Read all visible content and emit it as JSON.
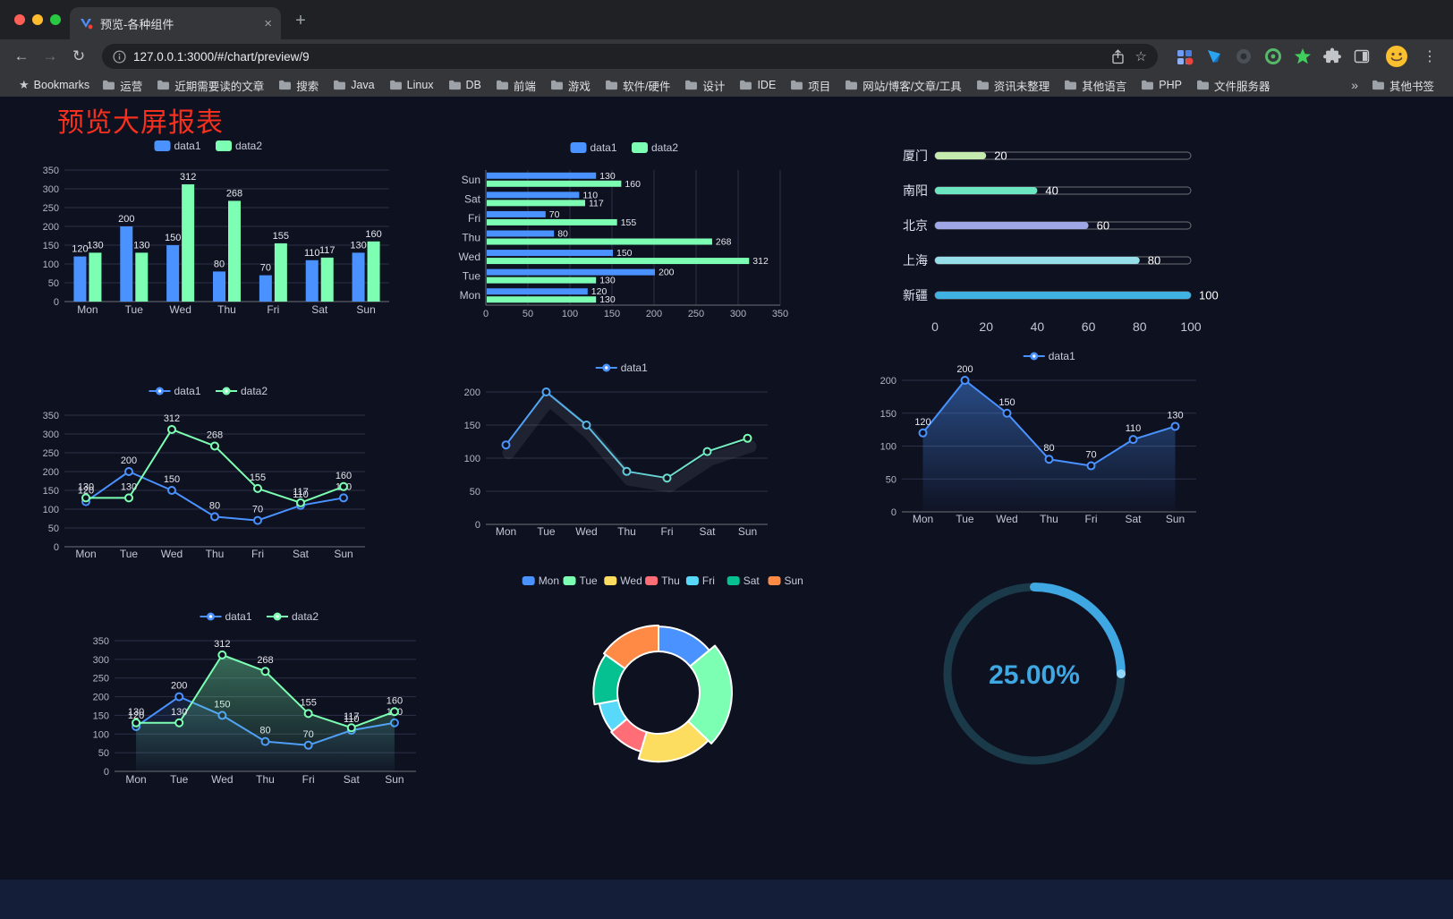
{
  "browser": {
    "tab": {
      "title": "预览-各种组件"
    },
    "toolbar": {
      "url": "127.0.0.1:3000/#/chart/preview/9"
    },
    "bookmarks_bar": {
      "first_label": "Bookmarks",
      "folders": [
        "运营",
        "近期需要读的文章",
        "搜索",
        "Java",
        "Linux",
        "DB",
        "前端",
        "游戏",
        "软件/硬件",
        "设计",
        "IDE",
        "项目",
        "网站/博客/文章/工具",
        "资讯未整理",
        "其他语言",
        "PHP",
        "文件服务器"
      ],
      "overflow_label": "»",
      "other_label": "其他书签"
    }
  },
  "page": {
    "title": "预览大屏报表",
    "title_color": "#f5301f",
    "background": "#0e1120"
  },
  "chart_data": [
    {
      "id": "c1",
      "type": "bar",
      "renderer": "bar",
      "categories": [
        "Mon",
        "Tue",
        "Wed",
        "Thu",
        "Fri",
        "Sat",
        "Sun"
      ],
      "series": [
        {
          "name": "data1",
          "color": "#4992ff",
          "values": [
            120,
            200,
            150,
            80,
            70,
            110,
            130
          ]
        },
        {
          "name": "data2",
          "color": "#7cffb2",
          "values": [
            130,
            130,
            312,
            268,
            155,
            117,
            160
          ]
        }
      ],
      "ylim": [
        0,
        350
      ],
      "ytick": 50,
      "labels": true,
      "legend_position": "top",
      "grid": true
    },
    {
      "id": "c2",
      "type": "bar",
      "orientation": "horizontal",
      "renderer": "hbar",
      "categories": [
        "Mon",
        "Tue",
        "Wed",
        "Thu",
        "Fri",
        "Sat",
        "Sun"
      ],
      "series": [
        {
          "name": "data1",
          "color": "#4992ff",
          "values": [
            120,
            200,
            150,
            80,
            70,
            110,
            130
          ]
        },
        {
          "name": "data2",
          "color": "#7cffb2",
          "values": [
            130,
            130,
            312,
            268,
            155,
            117,
            160
          ]
        }
      ],
      "xlim": [
        0,
        350
      ],
      "xtick": 50,
      "labels": true,
      "legend_position": "top",
      "grid": true
    },
    {
      "id": "c3",
      "type": "bar",
      "orientation": "horizontal",
      "style": "progress-pill",
      "renderer": "progress",
      "categories": [
        "厦门",
        "南阳",
        "北京",
        "上海",
        "新疆"
      ],
      "values": [
        20,
        40,
        60,
        80,
        100
      ],
      "colors": [
        "#c4ebad",
        "#6be6c1",
        "#a0a7e6",
        "#96dee8",
        "#3fb1e3"
      ],
      "xlim": [
        0,
        100
      ],
      "xticks": [
        0,
        20,
        40,
        60,
        80,
        100
      ]
    },
    {
      "id": "c4",
      "type": "line",
      "renderer": "line",
      "categories": [
        "Mon",
        "Tue",
        "Wed",
        "Thu",
        "Fri",
        "Sat",
        "Sun"
      ],
      "series": [
        {
          "name": "data1",
          "color": "#4992ff",
          "values": [
            120,
            200,
            150,
            80,
            70,
            110,
            130
          ]
        },
        {
          "name": "data2",
          "color": "#7cffb2",
          "values": [
            130,
            130,
            312,
            268,
            155,
            117,
            160
          ]
        }
      ],
      "ylim": [
        0,
        350
      ],
      "ytick": 50,
      "labels": true,
      "legend_position": "top",
      "grid": true
    },
    {
      "id": "c5",
      "type": "line",
      "renderer": "line",
      "categories": [
        "Mon",
        "Tue",
        "Wed",
        "Thu",
        "Fri",
        "Sat",
        "Sun"
      ],
      "series": [
        {
          "name": "data1",
          "gradient": [
            "#4992ff",
            "#7cffb2"
          ],
          "shadow": true,
          "values": [
            120,
            200,
            150,
            80,
            70,
            110,
            130
          ]
        }
      ],
      "ylim": [
        0,
        200
      ],
      "ytick": 50,
      "labels": false,
      "legend_position": "top",
      "grid": true
    },
    {
      "id": "c6",
      "type": "area",
      "renderer": "line",
      "categories": [
        "Mon",
        "Tue",
        "Wed",
        "Thu",
        "Fri",
        "Sat",
        "Sun"
      ],
      "series": [
        {
          "name": "data1",
          "color": "#4992ff",
          "area": 0.45,
          "values": [
            120,
            200,
            150,
            80,
            70,
            110,
            130
          ]
        }
      ],
      "ylim": [
        0,
        200
      ],
      "ytick": 50,
      "labels": true,
      "legend_position": "top",
      "grid": true
    },
    {
      "id": "c7",
      "type": "area",
      "renderer": "line",
      "categories": [
        "Mon",
        "Tue",
        "Wed",
        "Thu",
        "Fri",
        "Sat",
        "Sun"
      ],
      "series": [
        {
          "name": "data1",
          "color": "#4992ff",
          "area": 0.22,
          "values": [
            120,
            200,
            150,
            80,
            70,
            110,
            130
          ]
        },
        {
          "name": "data2",
          "color": "#7cffb2",
          "area": 0.42,
          "values": [
            130,
            130,
            312,
            268,
            155,
            117,
            160
          ]
        }
      ],
      "ylim": [
        0,
        350
      ],
      "ytick": 50,
      "labels": true,
      "legend_position": "top",
      "grid": true
    },
    {
      "id": "c8",
      "type": "pie",
      "style": "rose-donut",
      "renderer": "pie",
      "rose": true,
      "categories": [
        "Mon",
        "Tue",
        "Wed",
        "Thu",
        "Fri",
        "Sat",
        "Sun"
      ],
      "values": [
        120,
        200,
        150,
        80,
        70,
        110,
        130
      ],
      "colors": [
        "#4992ff",
        "#7cffb2",
        "#fddd60",
        "#ff6e76",
        "#58d9f9",
        "#05c091",
        "#ff8a45"
      ],
      "legend_position": "top"
    },
    {
      "id": "c9",
      "type": "gauge",
      "renderer": "gauge",
      "value": 25,
      "max": 100,
      "label": "25.00%",
      "color": "#3fa7e1",
      "track_color": "#1b3a49"
    }
  ]
}
